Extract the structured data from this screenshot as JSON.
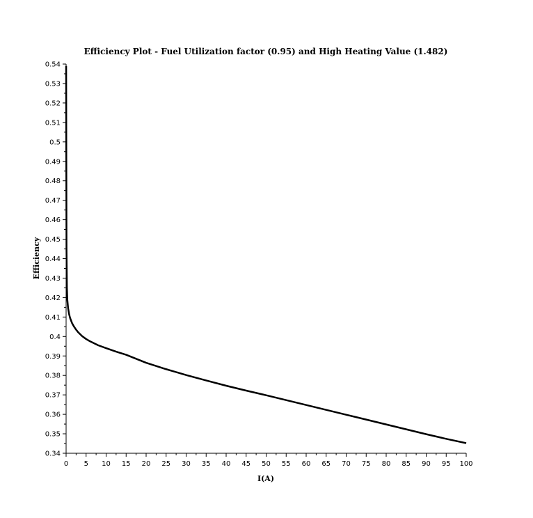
{
  "chart_data": {
    "type": "line",
    "title": "Efficiency Plot - Fuel Utilization factor (0.95) and High Heating Value (1.482)",
    "xlabel": "I(A)",
    "ylabel": "Efficiency",
    "xlim": [
      0,
      100
    ],
    "ylim": [
      0.34,
      0.54
    ],
    "x_ticks": [
      "0",
      "5",
      "10",
      "15",
      "20",
      "25",
      "30",
      "35",
      "40",
      "45",
      "50",
      "55",
      "60",
      "65",
      "70",
      "75",
      "80",
      "85",
      "90",
      "95",
      "100"
    ],
    "y_ticks": [
      "0.34",
      "0.35",
      "0.36",
      "0.37",
      "0.38",
      "0.39",
      "0.4",
      "0.41",
      "0.42",
      "0.43",
      "0.44",
      "0.45",
      "0.46",
      "0.47",
      "0.48",
      "0.49",
      "0.5",
      "0.51",
      "0.52",
      "0.53",
      "0.54"
    ],
    "grid": false,
    "series": [
      {
        "color": "#000000",
        "x": [
          0.01,
          0.05,
          0.1,
          0.2,
          0.3,
          0.5,
          0.75,
          1,
          1.5,
          2,
          2.5,
          3,
          4,
          5,
          6,
          8,
          10,
          12.5,
          15,
          20,
          25,
          30,
          35,
          40,
          45,
          50,
          55,
          60,
          65,
          70,
          75,
          80,
          85,
          90,
          95,
          100
        ],
        "y": [
          0.539,
          0.49,
          0.445,
          0.425,
          0.419,
          0.4145,
          0.4115,
          0.4095,
          0.4068,
          0.405,
          0.4035,
          0.4022,
          0.4002,
          0.3987,
          0.3975,
          0.3955,
          0.394,
          0.3922,
          0.3906,
          0.3865,
          0.3832,
          0.3802,
          0.3774,
          0.3747,
          0.3722,
          0.3698,
          0.3673,
          0.3648,
          0.3623,
          0.3598,
          0.3573,
          0.3548,
          0.3523,
          0.3498,
          0.3474,
          0.3452
        ]
      }
    ]
  }
}
